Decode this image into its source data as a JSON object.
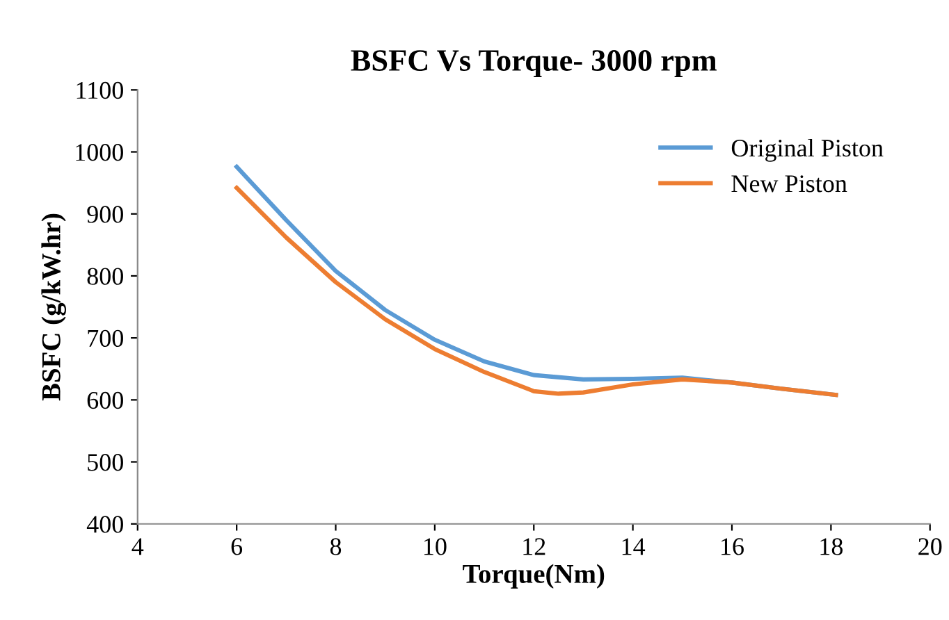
{
  "chart_data": {
    "type": "line",
    "title": "BSFC Vs Torque- 3000 rpm",
    "xlabel": "Torque(Nm)",
    "ylabel": "BSFC (g/kW.hr)",
    "xlim": [
      4,
      20
    ],
    "xticks": [
      4,
      6,
      8,
      10,
      12,
      14,
      16,
      18,
      20
    ],
    "ylim": [
      400,
      1100
    ],
    "yticks": [
      400,
      500,
      600,
      700,
      800,
      900,
      1000,
      1100
    ],
    "grid": false,
    "legend": "right",
    "marker": "none",
    "line_style": "solid",
    "series": [
      {
        "name": "Original Piston",
        "color": "#5b9bd5",
        "x": [
          6,
          7,
          8,
          9,
          10,
          11,
          12,
          13,
          14,
          15,
          16,
          17,
          18.1
        ],
        "values": [
          976,
          890,
          808,
          745,
          697,
          662,
          640,
          633,
          634,
          636,
          628,
          618,
          608
        ]
      },
      {
        "name": "New Piston",
        "color": "#ed7d31",
        "x": [
          6,
          7,
          8,
          9,
          10,
          11,
          12,
          12.5,
          13,
          14,
          15,
          16,
          17,
          18.1
        ],
        "values": [
          942,
          862,
          790,
          730,
          682,
          645,
          614,
          610,
          612,
          625,
          633,
          628,
          618,
          608
        ]
      }
    ]
  }
}
